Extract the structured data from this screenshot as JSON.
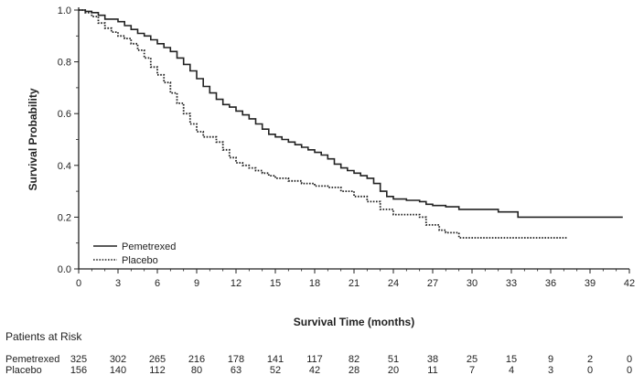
{
  "chart_data": {
    "type": "line",
    "subtype": "kaplan-meier",
    "title": "",
    "xlabel": "Survival Time (months)",
    "ylabel": "Survival Probability",
    "xlim": [
      0,
      42
    ],
    "ylim": [
      0,
      1
    ],
    "x_ticks": [
      0,
      3,
      6,
      9,
      12,
      15,
      18,
      21,
      24,
      27,
      30,
      33,
      36,
      39,
      42
    ],
    "y_ticks": [
      0,
      0.2,
      0.4,
      0.6,
      0.8,
      1.0
    ],
    "y_tick_labels": [
      "0.0",
      "0.2",
      "0.4",
      "0.6",
      "0.8",
      "1.0"
    ],
    "legend_position": "bottom-left",
    "series": [
      {
        "name": "Pemetrexed",
        "style": "solid",
        "color": "#222222",
        "points": [
          [
            0,
            1.0
          ],
          [
            0.5,
            0.995
          ],
          [
            1,
            0.99
          ],
          [
            1.5,
            0.98
          ],
          [
            2,
            0.965
          ],
          [
            3,
            0.955
          ],
          [
            3.5,
            0.94
          ],
          [
            4,
            0.925
          ],
          [
            4.5,
            0.91
          ],
          [
            5,
            0.9
          ],
          [
            5.5,
            0.885
          ],
          [
            6,
            0.87
          ],
          [
            6.5,
            0.855
          ],
          [
            7,
            0.84
          ],
          [
            7.5,
            0.815
          ],
          [
            8,
            0.79
          ],
          [
            8.5,
            0.765
          ],
          [
            9,
            0.735
          ],
          [
            9.5,
            0.705
          ],
          [
            10,
            0.68
          ],
          [
            10.5,
            0.655
          ],
          [
            11,
            0.635
          ],
          [
            11.5,
            0.625
          ],
          [
            12,
            0.61
          ],
          [
            12.5,
            0.595
          ],
          [
            13,
            0.58
          ],
          [
            13.5,
            0.56
          ],
          [
            14,
            0.54
          ],
          [
            14.5,
            0.52
          ],
          [
            15,
            0.51
          ],
          [
            15.5,
            0.5
          ],
          [
            16,
            0.49
          ],
          [
            16.5,
            0.48
          ],
          [
            17,
            0.47
          ],
          [
            17.5,
            0.46
          ],
          [
            18,
            0.45
          ],
          [
            18.5,
            0.44
          ],
          [
            19,
            0.425
          ],
          [
            19.5,
            0.405
          ],
          [
            20,
            0.39
          ],
          [
            20.5,
            0.38
          ],
          [
            21,
            0.37
          ],
          [
            21.5,
            0.36
          ],
          [
            22,
            0.35
          ],
          [
            22.5,
            0.33
          ],
          [
            23,
            0.3
          ],
          [
            23.5,
            0.28
          ],
          [
            24,
            0.27
          ],
          [
            25,
            0.265
          ],
          [
            26,
            0.26
          ],
          [
            26.5,
            0.25
          ],
          [
            27,
            0.245
          ],
          [
            28,
            0.24
          ],
          [
            29,
            0.23
          ],
          [
            30,
            0.23
          ],
          [
            31,
            0.23
          ],
          [
            32,
            0.22
          ],
          [
            33.5,
            0.2
          ],
          [
            36,
            0.2
          ],
          [
            39,
            0.2
          ],
          [
            41.5,
            0.2
          ]
        ]
      },
      {
        "name": "Placebo",
        "style": "dotted",
        "color": "#222222",
        "points": [
          [
            0,
            1.0
          ],
          [
            0.5,
            0.99
          ],
          [
            1,
            0.975
          ],
          [
            1.5,
            0.95
          ],
          [
            2,
            0.93
          ],
          [
            2.5,
            0.915
          ],
          [
            3,
            0.9
          ],
          [
            3.5,
            0.89
          ],
          [
            4,
            0.87
          ],
          [
            4.5,
            0.845
          ],
          [
            5,
            0.815
          ],
          [
            5.5,
            0.78
          ],
          [
            6,
            0.75
          ],
          [
            6.5,
            0.72
          ],
          [
            7,
            0.68
          ],
          [
            7.5,
            0.64
          ],
          [
            8,
            0.6
          ],
          [
            8.5,
            0.56
          ],
          [
            9,
            0.53
          ],
          [
            9.5,
            0.51
          ],
          [
            10,
            0.51
          ],
          [
            10.5,
            0.49
          ],
          [
            11,
            0.46
          ],
          [
            11.5,
            0.43
          ],
          [
            12,
            0.41
          ],
          [
            12.5,
            0.4
          ],
          [
            13,
            0.39
          ],
          [
            13.5,
            0.38
          ],
          [
            14,
            0.37
          ],
          [
            14.5,
            0.36
          ],
          [
            15,
            0.35
          ],
          [
            16,
            0.34
          ],
          [
            17,
            0.33
          ],
          [
            18,
            0.32
          ],
          [
            19,
            0.315
          ],
          [
            20,
            0.3
          ],
          [
            21,
            0.28
          ],
          [
            22,
            0.26
          ],
          [
            23,
            0.23
          ],
          [
            24,
            0.21
          ],
          [
            25,
            0.21
          ],
          [
            26,
            0.2
          ],
          [
            26.5,
            0.17
          ],
          [
            27.5,
            0.15
          ],
          [
            28,
            0.14
          ],
          [
            29,
            0.12
          ],
          [
            30,
            0.12
          ],
          [
            33,
            0.12
          ],
          [
            36,
            0.12
          ],
          [
            37.3,
            0.12
          ]
        ]
      }
    ],
    "risk_table": {
      "title": "Patients at Risk",
      "rows": [
        {
          "name": "Pemetrexed",
          "values": [
            "325",
            "302",
            "265",
            "216",
            "178",
            "141",
            "117",
            "82",
            "51",
            "38",
            "25",
            "15",
            "9",
            "2",
            "0"
          ]
        },
        {
          "name": "Placebo",
          "values": [
            "156",
            "140",
            "112",
            "80",
            "63",
            "52",
            "42",
            "28",
            "20",
            "11",
            "7",
            "4",
            "3",
            "0",
            "0"
          ]
        }
      ]
    }
  }
}
